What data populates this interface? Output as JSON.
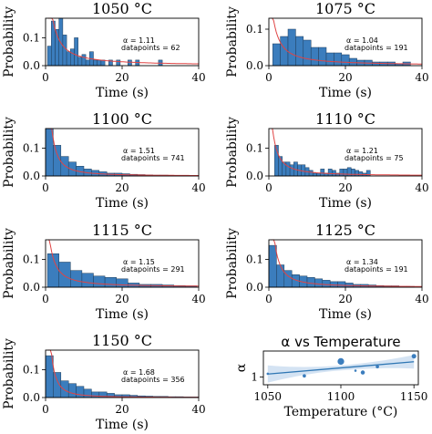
{
  "chart_data": [
    {
      "type": "bar",
      "title": "1050 °C",
      "xlabel": "Time (s)",
      "ylabel": "Probability",
      "xlim": [
        0,
        40
      ],
      "ylim": [
        0,
        0.17
      ],
      "xticks": [
        "0",
        "20",
        "40"
      ],
      "yticks": [
        "0.0",
        "0.1"
      ],
      "bin_width": 1,
      "x": [
        1,
        2,
        3,
        4,
        5,
        6,
        7,
        8,
        9,
        10,
        11,
        12,
        13,
        14,
        15,
        17,
        19,
        22,
        24,
        30
      ],
      "values": [
        0.07,
        0.16,
        0.13,
        0.18,
        0.11,
        0.05,
        0.06,
        0.1,
        0.03,
        0.04,
        0.02,
        0.05,
        0.02,
        0.02,
        0.02,
        0.02,
        0.02,
        0.02,
        0.02,
        0.02
      ],
      "alpha_label": "α = 1.11",
      "datapoints_label": "datapoints = 62",
      "alpha": 1.11,
      "datapoints": 62
    },
    {
      "type": "bar",
      "title": "1075 °C",
      "xlabel": "Time (s)",
      "ylabel": "Probability",
      "xlim": [
        0,
        40
      ],
      "ylim": [
        0,
        0.13
      ],
      "xticks": [
        "0",
        "20",
        "40"
      ],
      "yticks": [
        "0.0",
        "0.1"
      ],
      "bin_width": 2,
      "x": [
        2,
        4,
        6,
        8,
        10,
        12,
        14,
        16,
        18,
        20,
        22,
        24,
        26,
        28,
        30,
        32,
        34,
        36
      ],
      "values": [
        0.06,
        0.08,
        0.1,
        0.08,
        0.07,
        0.05,
        0.05,
        0.035,
        0.035,
        0.03,
        0.02,
        0.015,
        0.015,
        0.01,
        0.01,
        0.01,
        0.005,
        0.01
      ],
      "alpha_label": "α = 1.04",
      "datapoints_label": "datapoints = 191",
      "alpha": 1.04,
      "datapoints": 191
    },
    {
      "type": "bar",
      "title": "1100 °C",
      "xlabel": "Time (s)",
      "ylabel": "Probability",
      "xlim": [
        0,
        40
      ],
      "ylim": [
        0,
        0.17
      ],
      "xticks": [
        "0",
        "20",
        "40"
      ],
      "yticks": [
        "0.0",
        "0.1"
      ],
      "bin_width": 2,
      "x": [
        1,
        3,
        5,
        7,
        9,
        11,
        13,
        15,
        17,
        19,
        21,
        23,
        25,
        27,
        29,
        31,
        33,
        35,
        37,
        39
      ],
      "values": [
        0.17,
        0.11,
        0.07,
        0.05,
        0.035,
        0.025,
        0.02,
        0.015,
        0.01,
        0.01,
        0.008,
        0.006,
        0.005,
        0.004,
        0.003,
        0.003,
        0.002,
        0.002,
        0.002,
        0.001
      ],
      "alpha_label": "α = 1.51",
      "datapoints_label": "datapoints = 741",
      "alpha": 1.51,
      "datapoints": 741
    },
    {
      "type": "bar",
      "title": "1110 °C",
      "xlabel": "Time (s)",
      "ylabel": "Probability",
      "xlim": [
        0,
        40
      ],
      "ylim": [
        0,
        0.17
      ],
      "xticks": [
        "0",
        "20",
        "40"
      ],
      "yticks": [
        "0.0",
        "0.1"
      ],
      "bin_width": 1,
      "x": [
        2,
        3,
        4,
        5,
        6,
        7,
        8,
        9,
        10,
        11,
        12,
        13,
        14,
        15,
        16,
        17,
        18,
        19,
        20,
        21,
        22,
        23,
        24,
        25,
        26
      ],
      "values": [
        0.11,
        0.07,
        0.05,
        0.05,
        0.04,
        0.05,
        0.04,
        0.04,
        0.03,
        0.02,
        0.01,
        0.01,
        0.025,
        0.01,
        0.025,
        0.02,
        0.01,
        0.025,
        0.025,
        0.03,
        0.025,
        0.02,
        0.015,
        0.01,
        0.02
      ],
      "alpha_label": "α = 1.21",
      "datapoints_label": "datapoints = 75",
      "alpha": 1.21,
      "datapoints": 75
    },
    {
      "type": "bar",
      "title": "1115 °C",
      "xlabel": "Time (s)",
      "ylabel": "Probability",
      "xlim": [
        0,
        40
      ],
      "ylim": [
        0,
        0.17
      ],
      "xticks": [
        "0",
        "20",
        "40"
      ],
      "yticks": [
        "0.0",
        "0.1"
      ],
      "bin_width": 3,
      "x": [
        2,
        5,
        8,
        11,
        14,
        17,
        20,
        23,
        26,
        29,
        32,
        35,
        38
      ],
      "values": [
        0.12,
        0.09,
        0.06,
        0.05,
        0.04,
        0.035,
        0.03,
        0.015,
        0.01,
        0.01,
        0.008,
        0.006,
        0.005
      ],
      "alpha_label": "α = 1.15",
      "datapoints_label": "datapoints = 291",
      "alpha": 1.15,
      "datapoints": 291
    },
    {
      "type": "bar",
      "title": "1125 °C",
      "xlabel": "Time (s)",
      "ylabel": "Probability",
      "xlim": [
        0,
        40
      ],
      "ylim": [
        0,
        0.17
      ],
      "xticks": [
        "0",
        "20",
        "40"
      ],
      "yticks": [
        "0.0",
        "0.1"
      ],
      "bin_width": 2,
      "x": [
        1,
        3,
        5,
        7,
        9,
        11,
        13,
        15,
        17,
        19,
        21,
        23,
        25,
        27,
        29,
        31,
        33,
        35,
        37
      ],
      "values": [
        0.15,
        0.08,
        0.06,
        0.045,
        0.04,
        0.035,
        0.03,
        0.025,
        0.02,
        0.02,
        0.015,
        0.01,
        0.01,
        0.008,
        0.006,
        0.005,
        0.005,
        0.003,
        0.003
      ],
      "alpha_label": "α = 1.34",
      "datapoints_label": "datapoints = 191",
      "alpha": 1.34,
      "datapoints": 191
    },
    {
      "type": "bar",
      "title": "1150 °C",
      "xlabel": "Time (s)",
      "ylabel": "Probability",
      "xlim": [
        0,
        40
      ],
      "ylim": [
        0,
        0.17
      ],
      "xticks": [
        "0",
        "20",
        "40"
      ],
      "yticks": [
        "0.0",
        "0.1"
      ],
      "bin_width": 2,
      "x": [
        1,
        3,
        5,
        7,
        9,
        11,
        13,
        15,
        17,
        19,
        21,
        23,
        25,
        27,
        29,
        31,
        33,
        35,
        37,
        39
      ],
      "values": [
        0.15,
        0.09,
        0.06,
        0.05,
        0.04,
        0.03,
        0.02,
        0.02,
        0.015,
        0.01,
        0.01,
        0.008,
        0.006,
        0.005,
        0.004,
        0.004,
        0.003,
        0.003,
        0.002,
        0.002
      ],
      "alpha_label": "α = 1.68",
      "datapoints_label": "datapoints = 356",
      "alpha": 1.68,
      "datapoints": 356
    },
    {
      "type": "scatter",
      "title": "α vs Temperature",
      "xlabel": "Temperature (°C)",
      "ylabel": "α",
      "xlim": [
        1047,
        1153
      ],
      "ylim": [
        0.75,
        1.85
      ],
      "xticks": [
        "1050",
        "1100",
        "1150"
      ],
      "yticks": [
        "1"
      ],
      "x": [
        1050,
        1075,
        1100,
        1110,
        1115,
        1125,
        1150
      ],
      "y": [
        1.11,
        1.04,
        1.51,
        1.21,
        1.15,
        1.34,
        1.68
      ],
      "point_sizes": [
        62,
        191,
        741,
        75,
        291,
        191,
        356
      ],
      "fit": {
        "slope": 0.004,
        "intercept_at_1050": 1.1
      },
      "grid": false
    }
  ]
}
